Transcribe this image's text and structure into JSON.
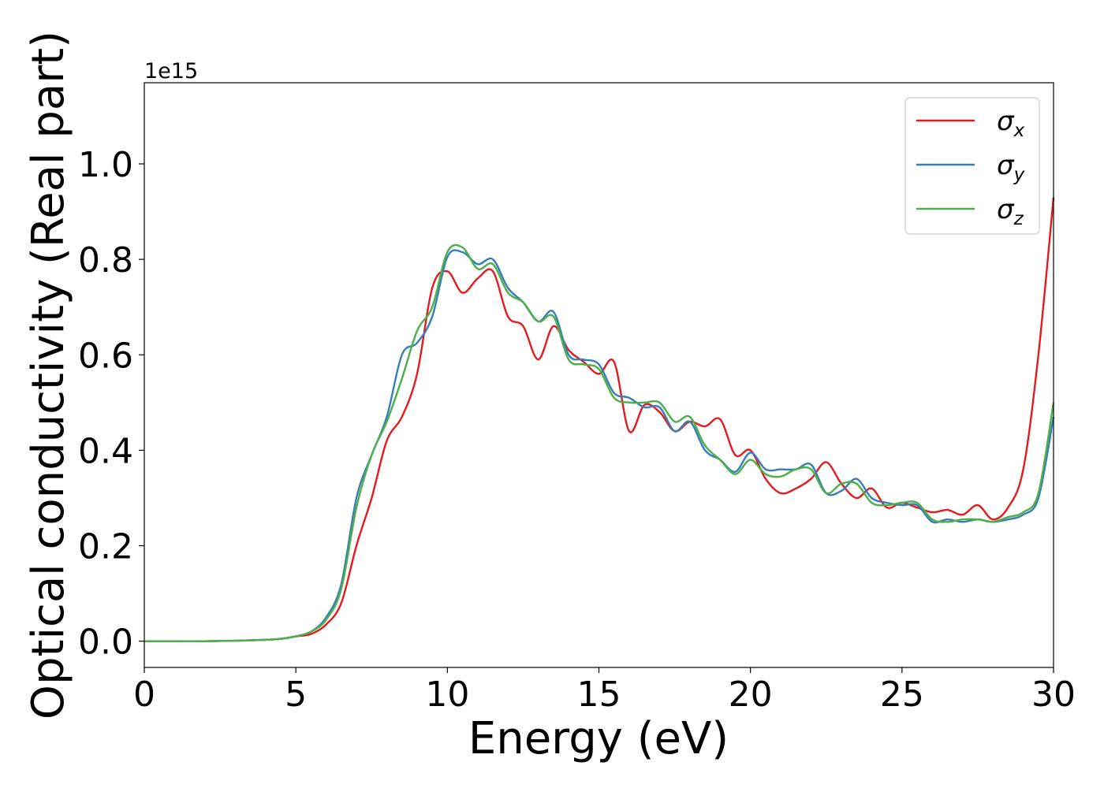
{
  "chart_data": {
    "type": "line",
    "xlabel": "Energy (eV)",
    "ylabel": "Optical conductivity (Real part)",
    "y_offset_text": "1e15",
    "xlim": [
      0,
      30
    ],
    "ylim": [
      -0.055,
      1.17
    ],
    "y_scale_note": "y values in units of 1e15",
    "x_ticks": [
      0,
      5,
      10,
      15,
      20,
      25,
      30
    ],
    "x_tick_labels": [
      "0",
      "5",
      "10",
      "15",
      "20",
      "25",
      "30"
    ],
    "y_ticks": [
      0.0,
      0.2,
      0.4,
      0.6,
      0.8,
      1.0
    ],
    "y_tick_labels": [
      "0.0",
      "0.2",
      "0.4",
      "0.6",
      "0.8",
      "1.0"
    ],
    "grid": false,
    "legend_position": "top-right",
    "x": [
      0,
      1,
      2,
      3,
      4,
      4.5,
      5,
      5.5,
      6,
      6.5,
      7,
      7.5,
      8,
      8.5,
      9,
      9.5,
      10,
      10.5,
      11,
      11.5,
      12,
      12.5,
      13,
      13.5,
      14,
      14.5,
      15,
      15.5,
      16,
      16.5,
      17,
      17.5,
      18,
      18.5,
      19,
      19.5,
      20,
      20.5,
      21,
      21.5,
      22,
      22.5,
      23,
      23.5,
      24,
      24.5,
      25,
      25.5,
      26,
      26.5,
      27,
      27.5,
      28,
      28.5,
      29,
      29.5,
      30
    ],
    "series": [
      {
        "name": "σx",
        "legend_symbol": "σ",
        "legend_sub": "x",
        "color": "#e41a1c",
        "values": [
          0,
          0,
          0,
          0.001,
          0.003,
          0.005,
          0.01,
          0.015,
          0.035,
          0.08,
          0.2,
          0.3,
          0.42,
          0.47,
          0.56,
          0.74,
          0.775,
          0.73,
          0.76,
          0.775,
          0.68,
          0.66,
          0.59,
          0.66,
          0.61,
          0.585,
          0.56,
          0.585,
          0.44,
          0.495,
          0.48,
          0.44,
          0.46,
          0.45,
          0.465,
          0.39,
          0.4,
          0.34,
          0.31,
          0.32,
          0.34,
          0.375,
          0.33,
          0.3,
          0.32,
          0.28,
          0.29,
          0.28,
          0.27,
          0.275,
          0.265,
          0.285,
          0.255,
          0.28,
          0.36,
          0.6,
          0.93
        ]
      },
      {
        "name": "σy",
        "legend_symbol": "σ",
        "legend_sub": "y",
        "color": "#377eb8",
        "values": [
          0,
          0,
          0,
          0.001,
          0.003,
          0.005,
          0.01,
          0.02,
          0.05,
          0.12,
          0.3,
          0.39,
          0.47,
          0.6,
          0.625,
          0.68,
          0.805,
          0.815,
          0.79,
          0.8,
          0.74,
          0.71,
          0.67,
          0.69,
          0.6,
          0.59,
          0.58,
          0.52,
          0.51,
          0.49,
          0.49,
          0.44,
          0.46,
          0.4,
          0.38,
          0.355,
          0.395,
          0.36,
          0.36,
          0.36,
          0.37,
          0.31,
          0.315,
          0.34,
          0.3,
          0.29,
          0.285,
          0.285,
          0.25,
          0.255,
          0.25,
          0.255,
          0.25,
          0.255,
          0.265,
          0.3,
          0.47
        ]
      },
      {
        "name": "σz",
        "legend_symbol": "σ",
        "legend_sub": "z",
        "color": "#4daf4a",
        "values": [
          0,
          0,
          0,
          0.001,
          0.003,
          0.005,
          0.01,
          0.02,
          0.045,
          0.11,
          0.28,
          0.39,
          0.46,
          0.55,
          0.65,
          0.7,
          0.815,
          0.825,
          0.78,
          0.79,
          0.73,
          0.71,
          0.67,
          0.68,
          0.59,
          0.58,
          0.57,
          0.51,
          0.5,
          0.5,
          0.5,
          0.46,
          0.47,
          0.41,
          0.38,
          0.35,
          0.38,
          0.35,
          0.345,
          0.36,
          0.36,
          0.31,
          0.33,
          0.33,
          0.29,
          0.285,
          0.29,
          0.29,
          0.255,
          0.25,
          0.255,
          0.255,
          0.25,
          0.26,
          0.27,
          0.31,
          0.5
        ]
      }
    ]
  }
}
